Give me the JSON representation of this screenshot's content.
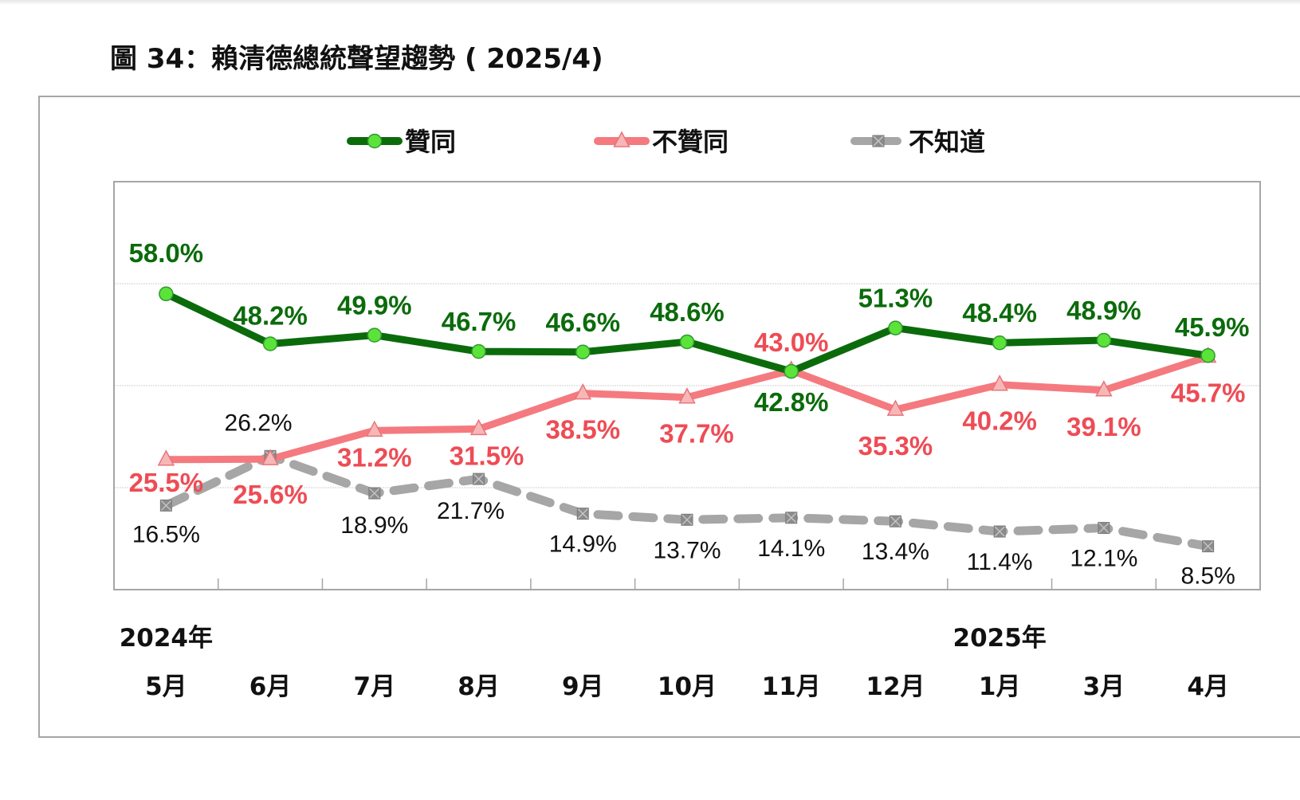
{
  "figure_title": "圖 34：賴清德總統聲望趨勢 ( 2025/4)",
  "chart_data": {
    "type": "line",
    "title": "圖 34：賴清德總統聲望趨勢 ( 2025/4)",
    "xlabel": "",
    "ylabel": "",
    "ylim": [
      0,
      80
    ],
    "grid": true,
    "gridlines_y": [
      20,
      40,
      60
    ],
    "legend_position": "top-center",
    "year_labels": [
      {
        "text": "2024年",
        "at_category": "5月"
      },
      {
        "text": "2025年",
        "at_category": "1月"
      }
    ],
    "categories": [
      "5月",
      "6月",
      "7月",
      "8月",
      "9月",
      "10月",
      "11月",
      "12月",
      "1月",
      "3月",
      "4月"
    ],
    "series": [
      {
        "name": "贊同",
        "color": "#0b6b0b",
        "marker": "circle",
        "marker_color": "#5be33a",
        "label_color": "#0b6b0b",
        "line_style": "solid",
        "values": [
          58.0,
          48.2,
          49.9,
          46.7,
          46.6,
          48.6,
          42.8,
          51.3,
          48.4,
          48.9,
          45.9
        ],
        "labels": [
          "58.0%",
          "48.2%",
          "49.9%",
          "46.7%",
          "46.6%",
          "48.6%",
          "42.8%",
          "51.3%",
          "48.4%",
          "48.9%",
          "45.9%"
        ]
      },
      {
        "name": "不贊同",
        "color": "#f47a7f",
        "marker": "triangle",
        "marker_color": "#f8b7b7",
        "label_color": "#ee4c55",
        "line_style": "solid",
        "values": [
          25.5,
          25.6,
          31.2,
          31.5,
          38.5,
          37.7,
          43.0,
          35.3,
          40.2,
          39.1,
          45.7
        ],
        "labels": [
          "25.5%",
          "25.6%",
          "31.2%",
          "31.5%",
          "38.5%",
          "37.7%",
          "43.0%",
          "35.3%",
          "40.2%",
          "39.1%",
          "45.7%"
        ]
      },
      {
        "name": "不知道",
        "color": "#a6a6a6",
        "marker": "square-x",
        "marker_color": "#8c8c8c",
        "label_color": "#111111",
        "line_style": "dashed",
        "values": [
          16.5,
          26.2,
          18.9,
          21.7,
          14.9,
          13.7,
          14.1,
          13.4,
          11.4,
          12.1,
          8.5
        ],
        "labels": [
          "16.5%",
          "26.2%",
          "18.9%",
          "21.7%",
          "14.9%",
          "13.7%",
          "14.1%",
          "13.4%",
          "11.4%",
          "12.1%",
          "8.5%"
        ]
      }
    ]
  }
}
